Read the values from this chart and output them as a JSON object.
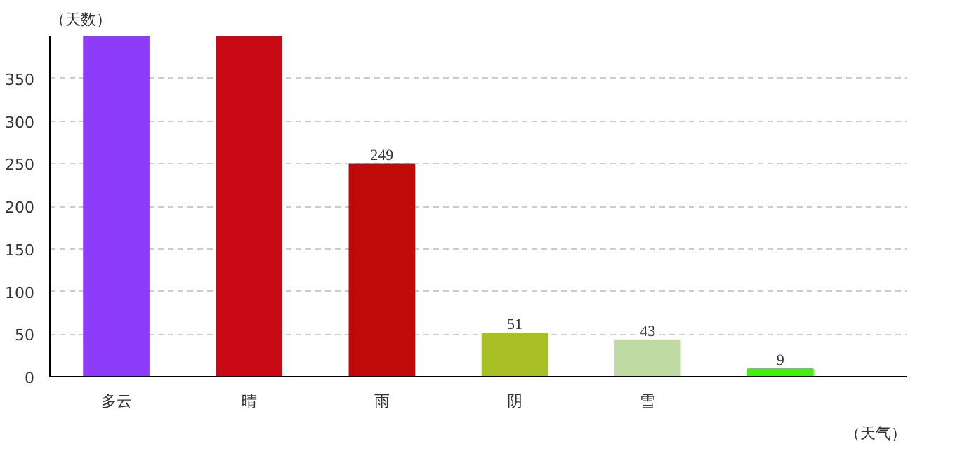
{
  "chart_data": {
    "type": "bar",
    "xlabel": "（天气）",
    "ylabel": "（天数）",
    "categories": [
      "多云",
      "晴",
      "雨",
      "阴",
      "雪",
      null
    ],
    "values": [
      400,
      400,
      249,
      51,
      43,
      9
    ],
    "value_labels": [
      null,
      null,
      "249",
      "51",
      "43",
      "9"
    ],
    "colors": [
      "#8e3cfb",
      "#c90a14",
      "#bf0a0a",
      "#a8c026",
      "#bfdaa2",
      "#44ee11"
    ],
    "ylim": [
      0,
      400
    ],
    "yticks": [
      0,
      50,
      100,
      150,
      200,
      250,
      300,
      350
    ],
    "grid": "y"
  }
}
